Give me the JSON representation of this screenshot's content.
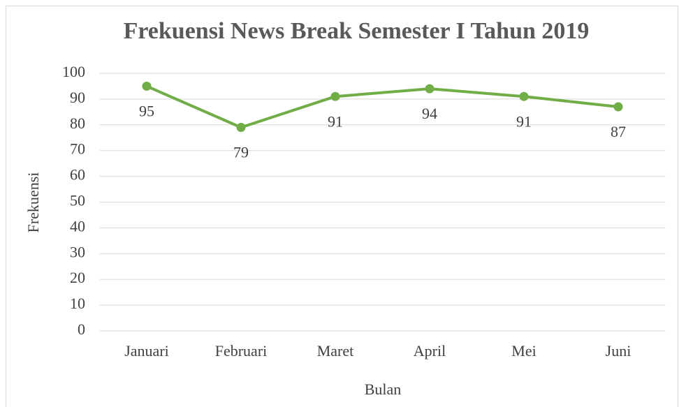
{
  "chart_data": {
    "type": "line",
    "title": "Frekuensi News Break Semester I Tahun 2019",
    "x_label": "Bulan",
    "y_label": "Frekuensi",
    "categories": [
      "Januari",
      "Februari",
      "Maret",
      "April",
      "Mei",
      "Juni"
    ],
    "series": [
      {
        "name": "Frekuensi",
        "color": "#70ad47",
        "values": [
          95,
          79,
          91,
          94,
          91,
          87
        ]
      }
    ],
    "ylim": [
      0,
      100
    ],
    "yticks": [
      0,
      10,
      20,
      30,
      40,
      50,
      60,
      70,
      80,
      90,
      100
    ],
    "grid": true,
    "legend": false
  }
}
